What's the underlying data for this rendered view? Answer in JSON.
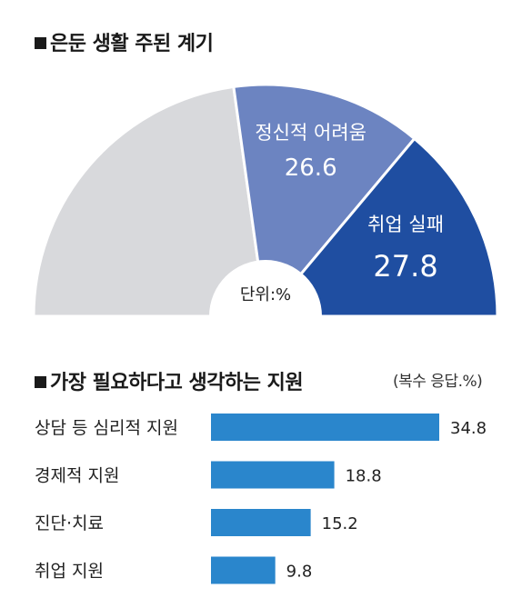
{
  "chart_data": [
    {
      "type": "pie",
      "title": "은둔 생활 주된 계기",
      "unit_note": "단위:%",
      "slices": [
        {
          "label": "",
          "value": 45.6,
          "color": "#d8d9dc"
        },
        {
          "label": "정신적 어려움",
          "value": 26.6,
          "value_text": "26.6",
          "color": "#6c84c1"
        },
        {
          "label": "취업 실패",
          "value": 27.8,
          "value_text": "27.8",
          "color": "#1f4ea1"
        }
      ]
    },
    {
      "type": "bar",
      "title": "가장 필요하다고 생각하는 지원",
      "note": "(복수 응답.%)",
      "categories": [
        "상담 등 심리적 지원",
        "경제적 지원",
        "진단·치료",
        "취업 지원"
      ],
      "values": [
        34.8,
        18.8,
        15.2,
        9.8
      ],
      "value_texts": [
        "34.8",
        "18.8",
        "15.2",
        "9.8"
      ],
      "color": "#2a86cc"
    }
  ]
}
